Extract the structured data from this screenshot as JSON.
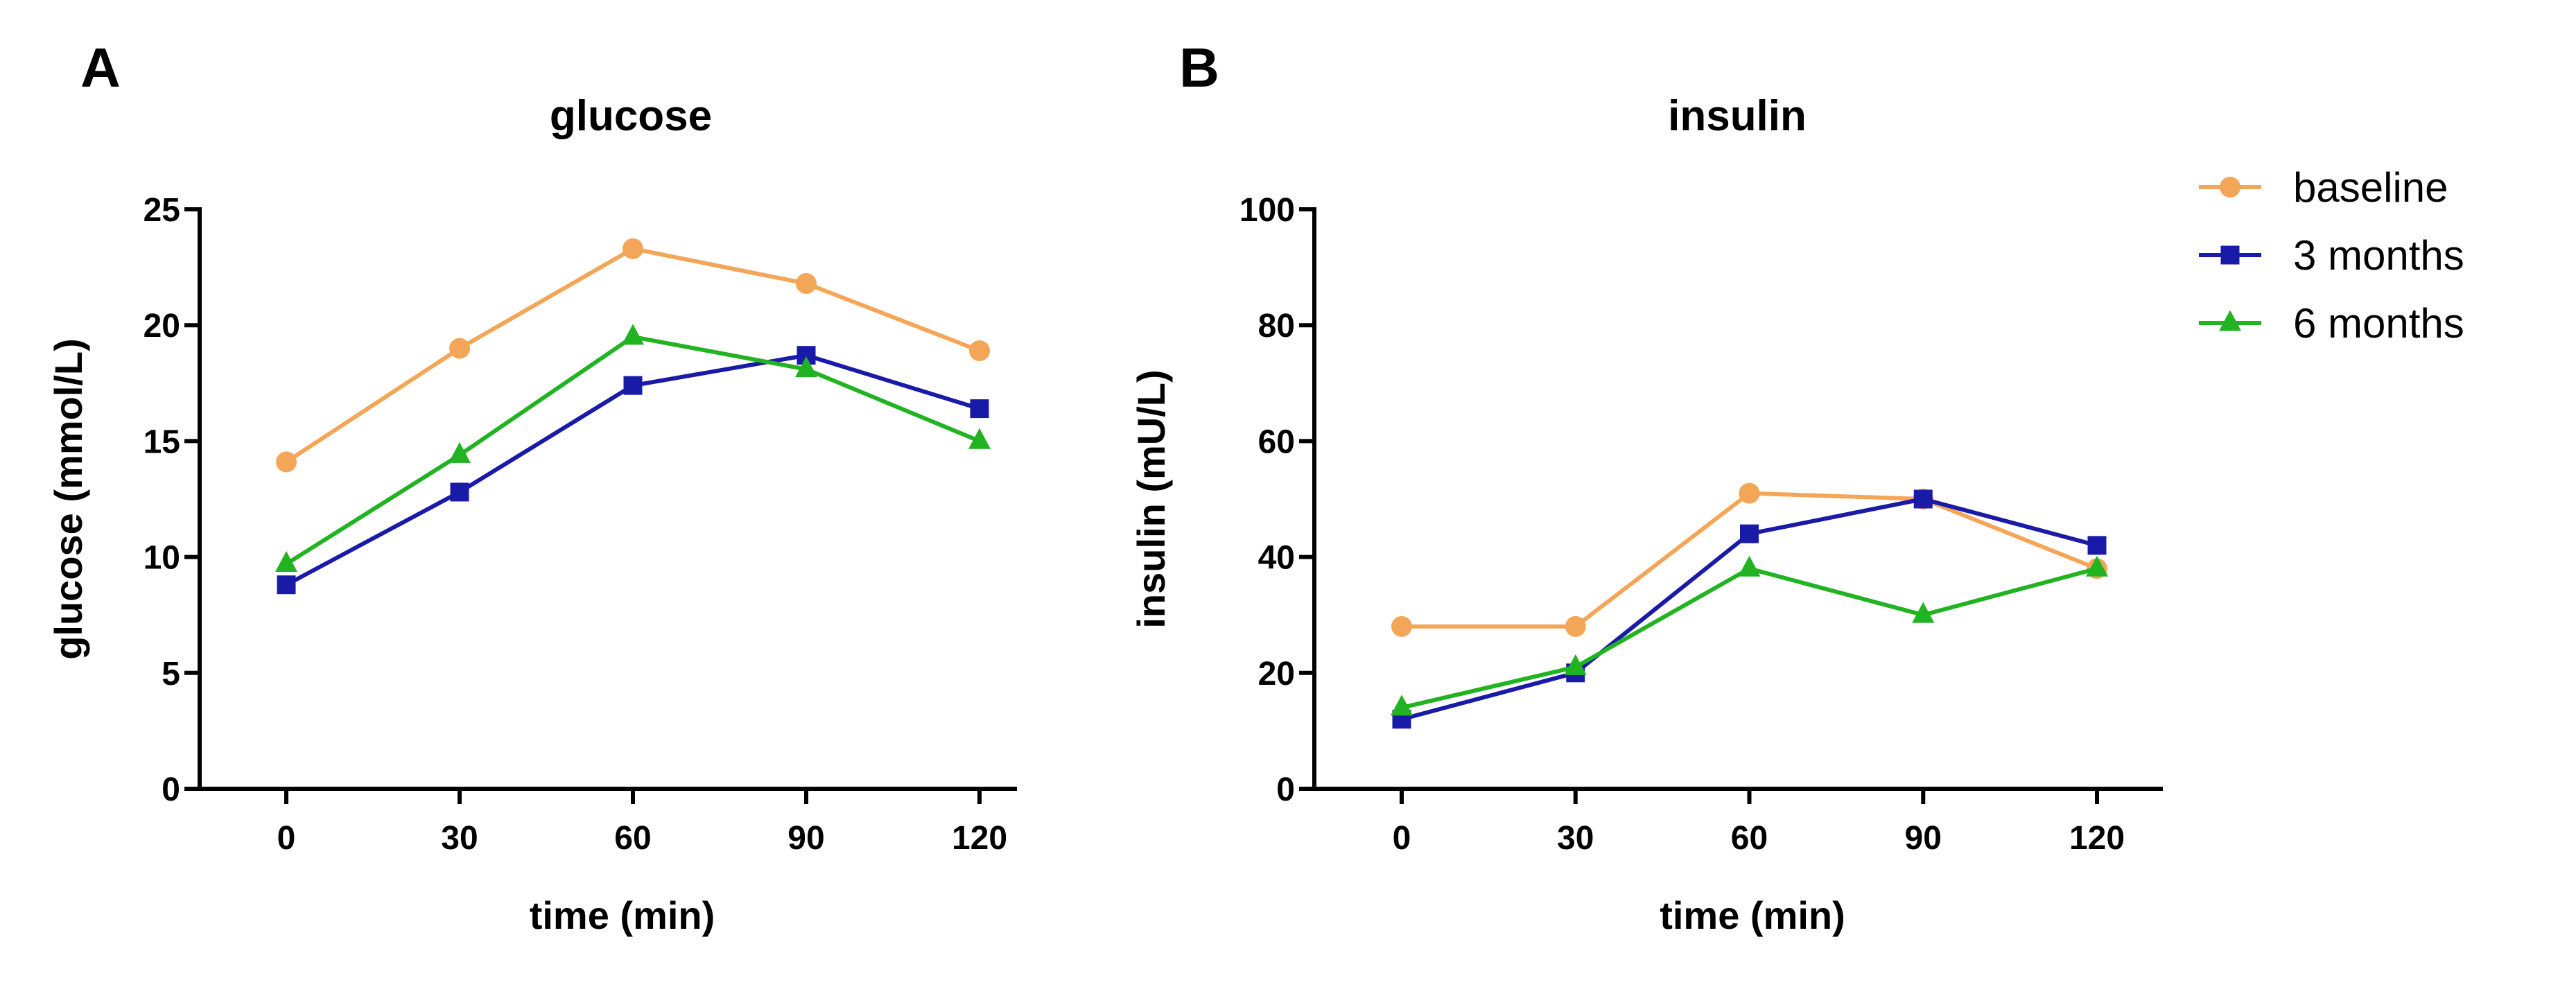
{
  "chart_data": [
    {
      "panel": "A",
      "type": "line",
      "title": "glucose",
      "xlabel": "time (min)",
      "ylabel": "glucose (mmol/L)",
      "x": [
        0,
        30,
        60,
        90,
        120
      ],
      "xticks": [
        "0",
        "30",
        "60",
        "90",
        "120"
      ],
      "ylim": [
        0,
        25
      ],
      "yticks": [
        "0",
        "5",
        "10",
        "15",
        "20",
        "25"
      ],
      "series": [
        {
          "name": "baseline",
          "color": "#F4A658",
          "marker": "circle",
          "values": [
            14.1,
            19.0,
            23.3,
            21.8,
            18.9
          ]
        },
        {
          "name": "3 months",
          "color": "#1A1AA8",
          "marker": "square",
          "values": [
            8.8,
            12.8,
            17.4,
            18.7,
            16.4
          ]
        },
        {
          "name": "6 months",
          "color": "#22B322",
          "marker": "triangle",
          "values": [
            9.7,
            14.4,
            19.5,
            18.1,
            15.0
          ]
        }
      ]
    },
    {
      "panel": "B",
      "type": "line",
      "title": "insulin",
      "xlabel": "time (min)",
      "ylabel": "insulin (mU/L)",
      "x": [
        0,
        30,
        60,
        90,
        120
      ],
      "xticks": [
        "0",
        "30",
        "60",
        "90",
        "120"
      ],
      "ylim": [
        0,
        100
      ],
      "yticks": [
        "0",
        "20",
        "40",
        "60",
        "80",
        "100"
      ],
      "series": [
        {
          "name": "baseline",
          "color": "#F4A658",
          "marker": "circle",
          "values": [
            28,
            28,
            51,
            50,
            38
          ]
        },
        {
          "name": "3 months",
          "color": "#1A1AA8",
          "marker": "square",
          "values": [
            12,
            20,
            44,
            50,
            42
          ]
        },
        {
          "name": "6 months",
          "color": "#22B322",
          "marker": "triangle",
          "values": [
            14,
            21,
            38,
            30,
            38
          ]
        }
      ]
    }
  ],
  "legend": {
    "placement": "top-right",
    "entries": [
      {
        "label": "baseline",
        "color": "#F4A658",
        "marker": "circle"
      },
      {
        "label": "3 months",
        "color": "#1A1AA8",
        "marker": "square"
      },
      {
        "label": "6 months",
        "color": "#22B322",
        "marker": "triangle"
      }
    ]
  }
}
